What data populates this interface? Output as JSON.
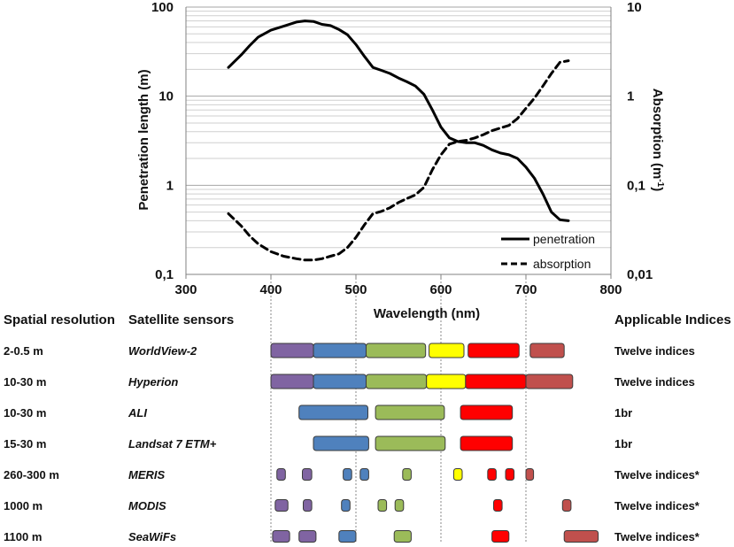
{
  "chart_data": {
    "type": "line",
    "x_axis": {
      "label": "Wavelength (nm)",
      "range": [
        300,
        800
      ],
      "ticks": [
        300,
        400,
        500,
        600,
        700,
        800
      ],
      "tick_labels": [
        "300",
        "400",
        "500",
        "600",
        "700",
        "800"
      ]
    },
    "y_left": {
      "label": "Penetration length (m)",
      "scale": "log",
      "range": [
        0.1,
        100
      ],
      "tick_labels": [
        "0,1",
        "1",
        "10",
        "100"
      ]
    },
    "y_right": {
      "label_text": "Absorption (m",
      "label_sup": "-1",
      "label_close": ")",
      "scale": "log",
      "range": [
        0.01,
        10
      ],
      "tick_labels": [
        "0,01",
        "0,1",
        "1",
        "10"
      ]
    },
    "grid": "horizontal log gridlines",
    "legend": {
      "position": "bottom-right",
      "entries": [
        {
          "label": "penetration",
          "style": "solid"
        },
        {
          "label": "absorption",
          "style": "dashed"
        }
      ]
    },
    "series": [
      {
        "name": "penetration",
        "axis": "left",
        "x": [
          350,
          365,
          375,
          385,
          400,
          415,
          430,
          440,
          450,
          460,
          470,
          480,
          490,
          500,
          510,
          520,
          530,
          540,
          550,
          560,
          570,
          580,
          590,
          600,
          610,
          620,
          630,
          640,
          650,
          660,
          670,
          680,
          690,
          700,
          710,
          720,
          730,
          740,
          750
        ],
        "y": [
          21,
          29,
          37,
          46,
          55,
          61,
          68,
          70,
          69,
          64,
          62,
          56,
          49,
          38,
          28,
          21,
          19.5,
          18,
          16,
          14.5,
          13,
          10.5,
          7,
          4.5,
          3.4,
          3.1,
          3.0,
          3.0,
          2.8,
          2.5,
          2.3,
          2.2,
          2.0,
          1.6,
          1.2,
          0.8,
          0.5,
          0.41,
          0.4
        ]
      },
      {
        "name": "absorption",
        "axis": "right",
        "x": [
          350,
          365,
          375,
          385,
          400,
          415,
          430,
          440,
          450,
          460,
          470,
          480,
          490,
          500,
          510,
          520,
          530,
          540,
          550,
          560,
          570,
          580,
          590,
          600,
          610,
          620,
          630,
          640,
          650,
          660,
          670,
          680,
          690,
          700,
          710,
          720,
          730,
          740,
          750
        ],
        "y": [
          0.048,
          0.035,
          0.027,
          0.022,
          0.018,
          0.016,
          0.015,
          0.0145,
          0.0145,
          0.015,
          0.016,
          0.017,
          0.02,
          0.026,
          0.036,
          0.048,
          0.051,
          0.056,
          0.064,
          0.071,
          0.078,
          0.095,
          0.15,
          0.22,
          0.29,
          0.31,
          0.32,
          0.34,
          0.37,
          0.41,
          0.44,
          0.47,
          0.56,
          0.73,
          0.95,
          1.3,
          1.8,
          2.4,
          2.5
        ]
      }
    ],
    "sensor_table": {
      "headers": {
        "resolution": "Spatial resolution",
        "sensors": "Satellite sensors",
        "indices": "Applicable Indices"
      },
      "rows": [
        {
          "resolution": "2-0.5 m",
          "sensor": "WorldView-2",
          "indices": "Twelve indices",
          "bands": [
            {
              "start": 400,
              "end": 450,
              "color": "purple"
            },
            {
              "start": 450,
              "end": 512,
              "color": "blue"
            },
            {
              "start": 512,
              "end": 582,
              "color": "green"
            },
            {
              "start": 586,
              "end": 627,
              "color": "yellow"
            },
            {
              "start": 632,
              "end": 692,
              "color": "red"
            },
            {
              "start": 705,
              "end": 745,
              "color": "darkred"
            }
          ]
        },
        {
          "resolution": "10-30 m",
          "sensor": "Hyperion",
          "indices": "Twelve indices",
          "bands": [
            {
              "start": 400,
              "end": 450,
              "color": "purple"
            },
            {
              "start": 450,
              "end": 512,
              "color": "blue"
            },
            {
              "start": 512,
              "end": 583,
              "color": "green"
            },
            {
              "start": 583,
              "end": 629,
              "color": "yellow"
            },
            {
              "start": 629,
              "end": 700,
              "color": "red"
            },
            {
              "start": 700,
              "end": 755,
              "color": "darkred"
            }
          ]
        },
        {
          "resolution": "10-30 m",
          "sensor": "ALI",
          "indices": "1br",
          "bands": [
            {
              "start": 433,
              "end": 514,
              "color": "blue"
            },
            {
              "start": 523,
              "end": 604,
              "color": "green"
            },
            {
              "start": 623,
              "end": 684,
              "color": "red"
            }
          ]
        },
        {
          "resolution": "15-30 m",
          "sensor": "Landsat 7 ETM+",
          "indices": "1br",
          "bands": [
            {
              "start": 450,
              "end": 515,
              "color": "blue"
            },
            {
              "start": 523,
              "end": 605,
              "color": "green"
            },
            {
              "start": 623,
              "end": 684,
              "color": "red"
            }
          ]
        },
        {
          "resolution": "260-300 m",
          "sensor": "MERIS",
          "indices": "Twelve indices*",
          "bands": [
            {
              "start": 407,
              "end": 417,
              "color": "purple"
            },
            {
              "start": 437,
              "end": 448,
              "color": "purple"
            },
            {
              "start": 485,
              "end": 495,
              "color": "blue"
            },
            {
              "start": 505,
              "end": 515,
              "color": "blue"
            },
            {
              "start": 555,
              "end": 565,
              "color": "green"
            },
            {
              "start": 615,
              "end": 625,
              "color": "yellow"
            },
            {
              "start": 655,
              "end": 665,
              "color": "red"
            },
            {
              "start": 676,
              "end": 686,
              "color": "red"
            },
            {
              "start": 700,
              "end": 709,
              "color": "darkred"
            }
          ]
        },
        {
          "resolution": "1000 m",
          "sensor": "MODIS",
          "indices": "Twelve indices*",
          "bands": [
            {
              "start": 405,
              "end": 420,
              "color": "purple"
            },
            {
              "start": 438,
              "end": 448,
              "color": "purple"
            },
            {
              "start": 483,
              "end": 493,
              "color": "blue"
            },
            {
              "start": 526,
              "end": 536,
              "color": "green"
            },
            {
              "start": 546,
              "end": 556,
              "color": "green"
            },
            {
              "start": 662,
              "end": 672,
              "color": "red"
            },
            {
              "start": 743,
              "end": 753,
              "color": "darkred"
            }
          ]
        },
        {
          "resolution": "1100 m",
          "sensor": "SeaWiFs",
          "indices": "Twelve indices*",
          "bands": [
            {
              "start": 402,
              "end": 422,
              "color": "purple"
            },
            {
              "start": 433,
              "end": 453,
              "color": "purple"
            },
            {
              "start": 480,
              "end": 500,
              "color": "blue"
            },
            {
              "start": 545,
              "end": 565,
              "color": "green"
            },
            {
              "start": 660,
              "end": 680,
              "color": "red"
            },
            {
              "start": 745,
              "end": 785,
              "color": "darkred"
            }
          ]
        }
      ],
      "colors": {
        "purple": "#8064a2",
        "blue": "#4f81bd",
        "green": "#9bbb59",
        "yellow": "#ffff00",
        "red": "#ff0000",
        "darkred": "#c0504d"
      }
    }
  }
}
